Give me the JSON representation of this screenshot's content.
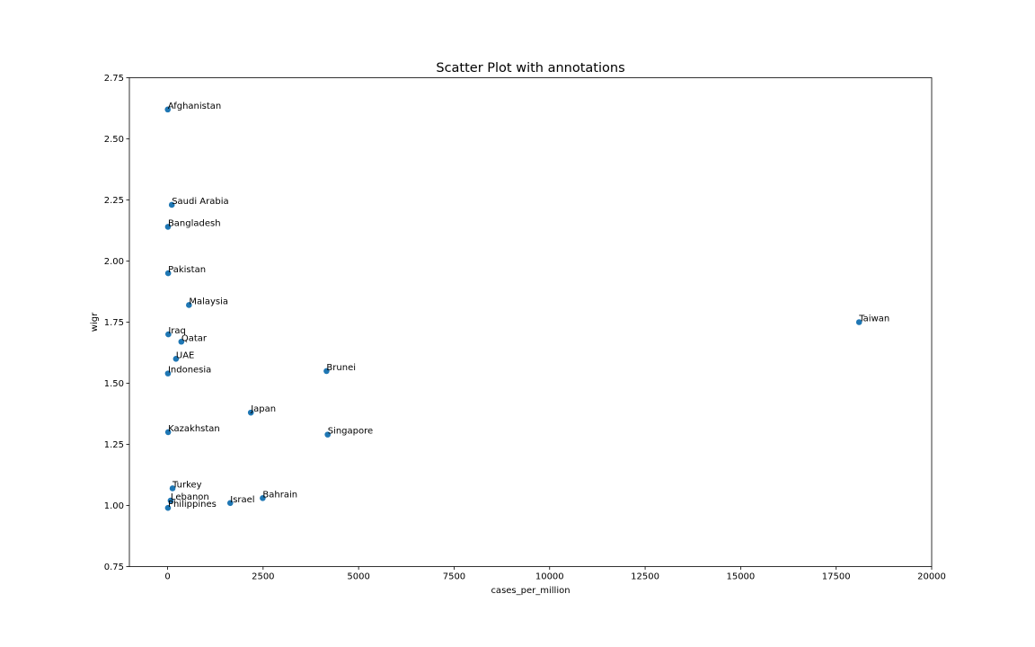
{
  "chart_data": {
    "type": "scatter",
    "title": "Scatter Plot with annotations",
    "xlabel": "cases_per_million",
    "ylabel": "wigr",
    "xlim": [
      -1000,
      20000
    ],
    "ylim": [
      0.75,
      2.75
    ],
    "xticks": [
      0,
      2500,
      5000,
      7500,
      10000,
      12500,
      15000,
      17500,
      20000
    ],
    "yticks": [
      0.75,
      1.0,
      1.25,
      1.5,
      1.75,
      2.0,
      2.25,
      2.5,
      2.75
    ],
    "ytick_labels": [
      "0.75",
      "1.00",
      "1.25",
      "1.50",
      "1.75",
      "2.00",
      "2.25",
      "2.50",
      "2.75"
    ],
    "grid": false,
    "marker_color": "#1f77b4",
    "points": [
      {
        "label": "Afghanistan",
        "x": 5,
        "y": 2.62
      },
      {
        "label": "Saudi Arabia",
        "x": 110,
        "y": 2.23
      },
      {
        "label": "Bangladesh",
        "x": 10,
        "y": 2.14
      },
      {
        "label": "Pakistan",
        "x": 15,
        "y": 1.95
      },
      {
        "label": "Malaysia",
        "x": 560,
        "y": 1.82
      },
      {
        "label": "Taiwan",
        "x": 18100,
        "y": 1.75
      },
      {
        "label": "Iraq",
        "x": 20,
        "y": 1.7
      },
      {
        "label": "Qatar",
        "x": 360,
        "y": 1.67
      },
      {
        "label": "UAE",
        "x": 220,
        "y": 1.6
      },
      {
        "label": "Brunei",
        "x": 4160,
        "y": 1.55
      },
      {
        "label": "Indonesia",
        "x": 10,
        "y": 1.54
      },
      {
        "label": "Japan",
        "x": 2180,
        "y": 1.38
      },
      {
        "label": "Kazakhstan",
        "x": 15,
        "y": 1.3
      },
      {
        "label": "Singapore",
        "x": 4190,
        "y": 1.29
      },
      {
        "label": "Turkey",
        "x": 130,
        "y": 1.07
      },
      {
        "label": "Bahrain",
        "x": 2490,
        "y": 1.03
      },
      {
        "label": "Lebanon",
        "x": 80,
        "y": 1.02
      },
      {
        "label": "Israel",
        "x": 1640,
        "y": 1.01
      },
      {
        "label": "Philippines",
        "x": 10,
        "y": 0.99
      }
    ]
  }
}
